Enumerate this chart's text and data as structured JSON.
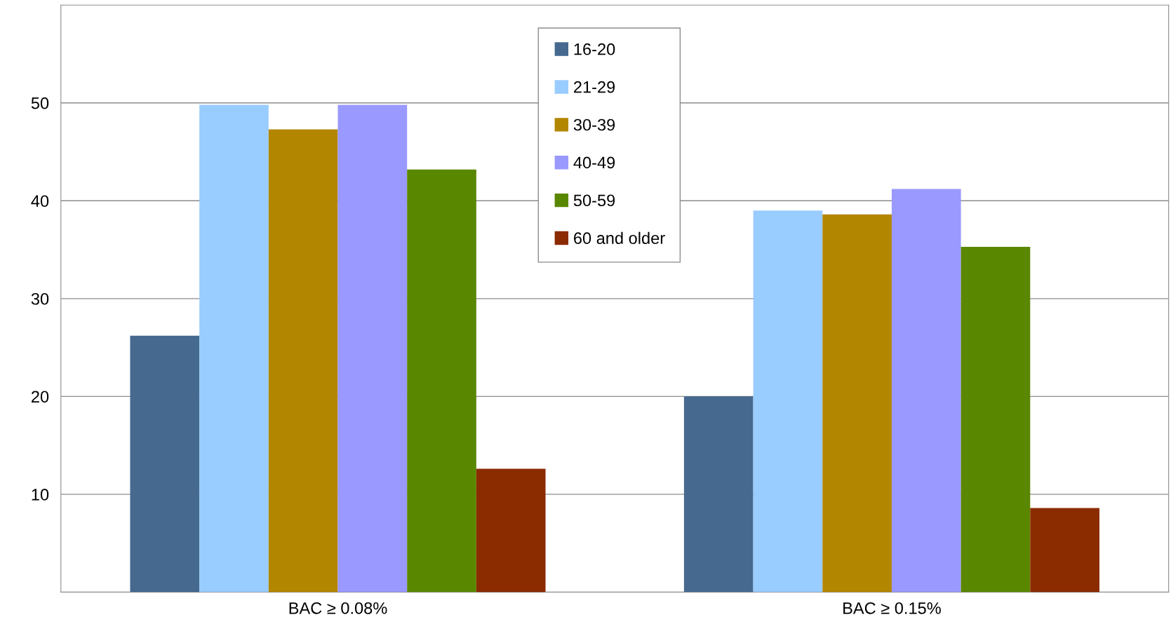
{
  "chart_data": {
    "type": "bar",
    "categories": [
      "BAC ≥ 0.08%",
      "BAC ≥ 0.15%"
    ],
    "series": [
      {
        "name": "16-20",
        "color": "#46698f",
        "values": [
          26.2,
          20.0
        ]
      },
      {
        "name": "21-29",
        "color": "#99ccff",
        "values": [
          49.8,
          39.0
        ]
      },
      {
        "name": "30-39",
        "color": "#b38600",
        "values": [
          47.3,
          38.6
        ]
      },
      {
        "name": "40-49",
        "color": "#9999ff",
        "values": [
          49.8,
          41.2
        ]
      },
      {
        "name": "50-59",
        "color": "#5a8700",
        "values": [
          43.2,
          35.3
        ]
      },
      {
        "name": "60 and older",
        "color": "#8b2b00",
        "values": [
          12.6,
          8.6
        ]
      }
    ],
    "ylim": [
      0,
      60
    ],
    "yticks": [
      10,
      20,
      30,
      40,
      50
    ],
    "grid": "y",
    "legend": "top"
  }
}
